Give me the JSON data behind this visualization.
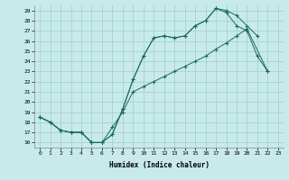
{
  "xlabel": "Humidex (Indice chaleur)",
  "bg_color": "#c8eaea",
  "grid_color": "#a0cccc",
  "line_color": "#1a6b5a",
  "xlim": [
    -0.5,
    23.5
  ],
  "ylim": [
    15.5,
    29.5
  ],
  "xticks": [
    0,
    1,
    2,
    3,
    4,
    5,
    6,
    7,
    8,
    9,
    10,
    11,
    12,
    13,
    14,
    15,
    16,
    17,
    18,
    19,
    20,
    21,
    22,
    23
  ],
  "yticks": [
    16,
    17,
    18,
    19,
    20,
    21,
    22,
    23,
    24,
    25,
    26,
    27,
    28,
    29
  ],
  "curve1_x": [
    0,
    1,
    2,
    3,
    4,
    5,
    6,
    7,
    8,
    9,
    10,
    11,
    12,
    13,
    14,
    15,
    16,
    17,
    18,
    19,
    20,
    21
  ],
  "curve1_y": [
    18.5,
    18.0,
    17.2,
    17.0,
    17.0,
    16.0,
    16.0,
    16.8,
    19.3,
    22.2,
    24.5,
    26.3,
    26.5,
    26.3,
    26.5,
    27.5,
    28.0,
    29.2,
    29.0,
    28.5,
    27.5,
    26.5
  ],
  "curve2_x": [
    0,
    1,
    2,
    3,
    4,
    5,
    6,
    7,
    8,
    9,
    10,
    11,
    12,
    13,
    14,
    15,
    16,
    17,
    18,
    19,
    20,
    21,
    22
  ],
  "curve2_y": [
    18.5,
    18.0,
    17.2,
    17.0,
    17.0,
    16.0,
    16.0,
    16.8,
    19.3,
    22.2,
    24.5,
    26.3,
    26.5,
    26.3,
    26.5,
    27.5,
    28.0,
    29.2,
    28.8,
    27.5,
    27.0,
    24.5,
    23.0
  ],
  "curve3_x": [
    0,
    1,
    2,
    3,
    4,
    5,
    6,
    7,
    8,
    9,
    10,
    11,
    12,
    13,
    14,
    15,
    16,
    17,
    18,
    19,
    20,
    22
  ],
  "curve3_y": [
    18.5,
    18.0,
    17.2,
    17.0,
    17.0,
    16.0,
    16.0,
    17.5,
    19.0,
    21.0,
    21.5,
    22.0,
    22.5,
    23.0,
    23.5,
    24.0,
    24.5,
    25.2,
    25.8,
    26.5,
    27.2,
    23.0
  ]
}
